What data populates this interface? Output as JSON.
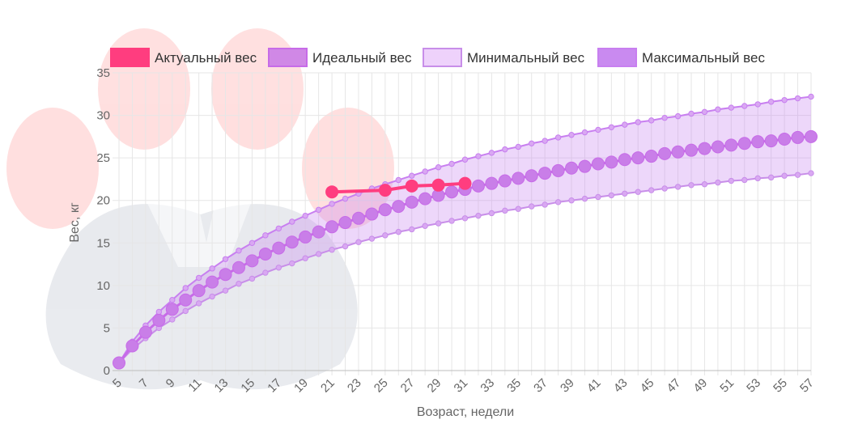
{
  "chart_data": {
    "type": "line",
    "xlabel": "Возраст, недели",
    "ylabel": "Вес, кг",
    "xlim": [
      5,
      57
    ],
    "ylim": [
      0,
      35
    ],
    "y_ticks": [
      0,
      5,
      10,
      15,
      20,
      25,
      30,
      35
    ],
    "x_ticks": [
      5,
      7,
      9,
      11,
      13,
      15,
      17,
      19,
      21,
      23,
      25,
      27,
      29,
      31,
      33,
      35,
      37,
      39,
      41,
      43,
      45,
      47,
      49,
      51,
      53,
      55,
      57
    ],
    "legend_position": "top",
    "series": [
      {
        "name": "Актуальный вес",
        "color": "#ff3d7f",
        "x": [
          21,
          25,
          27,
          29,
          31
        ],
        "values": [
          21.0,
          21.2,
          21.7,
          21.8,
          22.0
        ]
      },
      {
        "name": "Идеальный вес",
        "color": "#c76be8",
        "x": [
          5,
          6,
          7,
          8,
          9,
          10,
          11,
          12,
          13,
          14,
          15,
          16,
          17,
          18,
          19,
          20,
          21,
          22,
          23,
          24,
          25,
          26,
          27,
          28,
          29,
          30,
          31,
          32,
          33,
          34,
          35,
          36,
          37,
          38,
          39,
          40,
          41,
          42,
          43,
          44,
          45,
          46,
          47,
          48,
          49,
          50,
          51,
          52,
          53,
          54,
          55,
          56,
          57
        ],
        "values": [
          0.9,
          2.9,
          4.5,
          5.9,
          7.2,
          8.3,
          9.4,
          10.4,
          11.3,
          12.1,
          12.9,
          13.7,
          14.4,
          15.1,
          15.7,
          16.3,
          16.9,
          17.4,
          17.9,
          18.4,
          18.9,
          19.3,
          19.8,
          20.2,
          20.6,
          21.0,
          21.3,
          21.7,
          22.0,
          22.3,
          22.6,
          22.9,
          23.2,
          23.5,
          23.8,
          24.0,
          24.3,
          24.5,
          24.8,
          25.0,
          25.2,
          25.5,
          25.7,
          25.9,
          26.1,
          26.3,
          26.5,
          26.7,
          26.9,
          27.0,
          27.2,
          27.4,
          27.5
        ]
      },
      {
        "name": "Минимальный вес",
        "color": "#c88ee9",
        "x": [
          5,
          6,
          7,
          8,
          9,
          10,
          11,
          12,
          13,
          14,
          15,
          16,
          17,
          18,
          19,
          20,
          21,
          22,
          23,
          24,
          25,
          26,
          27,
          28,
          29,
          30,
          31,
          32,
          33,
          34,
          35,
          36,
          37,
          38,
          39,
          40,
          41,
          42,
          43,
          44,
          45,
          46,
          47,
          48,
          49,
          50,
          51,
          52,
          53,
          54,
          55,
          56,
          57
        ],
        "values": [
          0.9,
          2.5,
          3.8,
          5.0,
          6.0,
          7.0,
          7.9,
          8.7,
          9.4,
          10.2,
          10.8,
          11.5,
          12.1,
          12.6,
          13.2,
          13.7,
          14.2,
          14.6,
          15.1,
          15.5,
          15.9,
          16.3,
          16.6,
          17.0,
          17.3,
          17.6,
          17.9,
          18.2,
          18.5,
          18.8,
          19.0,
          19.3,
          19.5,
          19.8,
          20.0,
          20.2,
          20.4,
          20.6,
          20.8,
          21.0,
          21.2,
          21.4,
          21.6,
          21.8,
          21.9,
          22.1,
          22.3,
          22.4,
          22.6,
          22.7,
          22.9,
          23.0,
          23.2
        ]
      },
      {
        "name": "Максимальный вес",
        "color": "#c87ff0",
        "x": [
          5,
          6,
          7,
          8,
          9,
          10,
          11,
          12,
          13,
          14,
          15,
          16,
          17,
          18,
          19,
          20,
          21,
          22,
          23,
          24,
          25,
          26,
          27,
          28,
          29,
          30,
          31,
          32,
          33,
          34,
          35,
          36,
          37,
          38,
          39,
          40,
          41,
          42,
          43,
          44,
          45,
          46,
          47,
          48,
          49,
          50,
          51,
          52,
          53,
          54,
          55,
          56,
          57
        ],
        "values": [
          0.9,
          3.4,
          5.3,
          6.9,
          8.3,
          9.7,
          10.9,
          12.0,
          13.1,
          14.1,
          15.0,
          15.9,
          16.7,
          17.5,
          18.2,
          18.9,
          19.6,
          20.2,
          20.8,
          21.4,
          21.9,
          22.4,
          22.9,
          23.4,
          23.9,
          24.3,
          24.8,
          25.2,
          25.6,
          26.0,
          26.3,
          26.7,
          27.0,
          27.4,
          27.7,
          28.0,
          28.3,
          28.6,
          28.9,
          29.2,
          29.4,
          29.7,
          29.9,
          30.2,
          30.4,
          30.7,
          30.9,
          31.1,
          31.3,
          31.6,
          31.8,
          32.0,
          32.2
        ]
      }
    ]
  }
}
